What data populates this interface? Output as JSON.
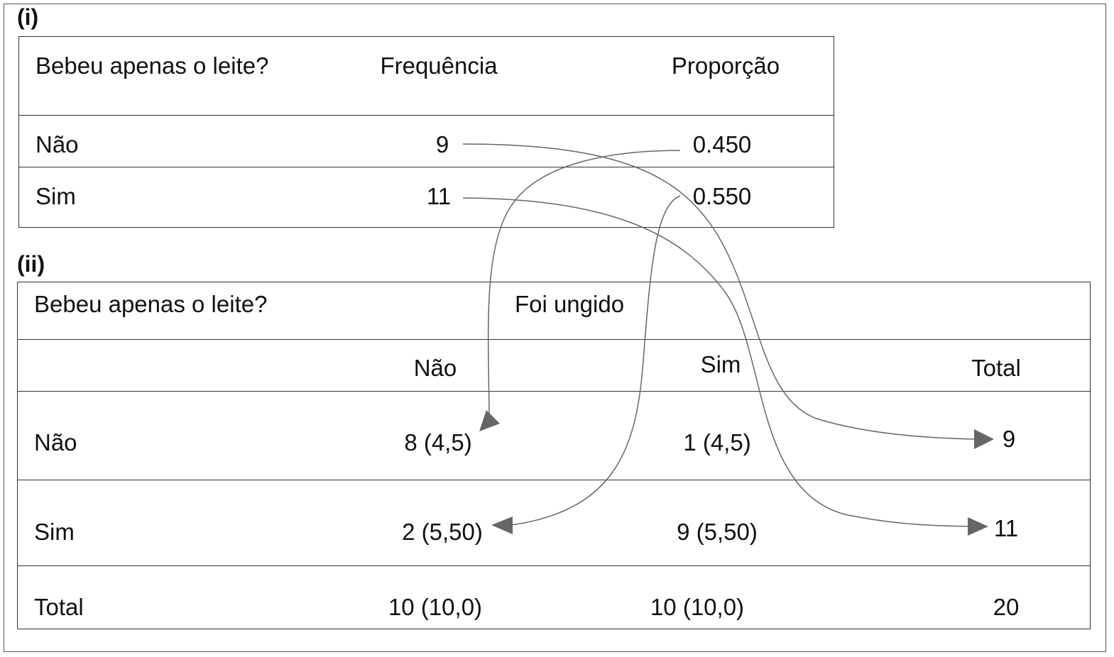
{
  "panel_i": {
    "label": "(i)",
    "header": {
      "col1": "Bebeu apenas o leite?",
      "col2": "Frequência",
      "col3": "Proporção"
    },
    "rows": [
      {
        "label": "Não",
        "freq": "9",
        "prop": "0.450"
      },
      {
        "label": "Sim",
        "freq": "11",
        "prop": "0.550"
      }
    ]
  },
  "panel_ii": {
    "label": "(ii)",
    "header": {
      "col1": "Bebeu apenas o leite?",
      "group": "Foi ungido"
    },
    "subheader": {
      "nao": "Não",
      "sim": "Sim",
      "total": "Total"
    },
    "rows": [
      {
        "label": "Não",
        "nao": "8 (4,5)",
        "sim": "1 (4,5)",
        "total": "9"
      },
      {
        "label": "Sim",
        "nao": "2 (5,50)",
        "sim": "9 (5,50)",
        "total": "11"
      },
      {
        "label": "Total",
        "nao": "10 (10,0)",
        "sim": "10 (10,0)",
        "total": "20"
      }
    ]
  },
  "arrow_color": "#666666"
}
